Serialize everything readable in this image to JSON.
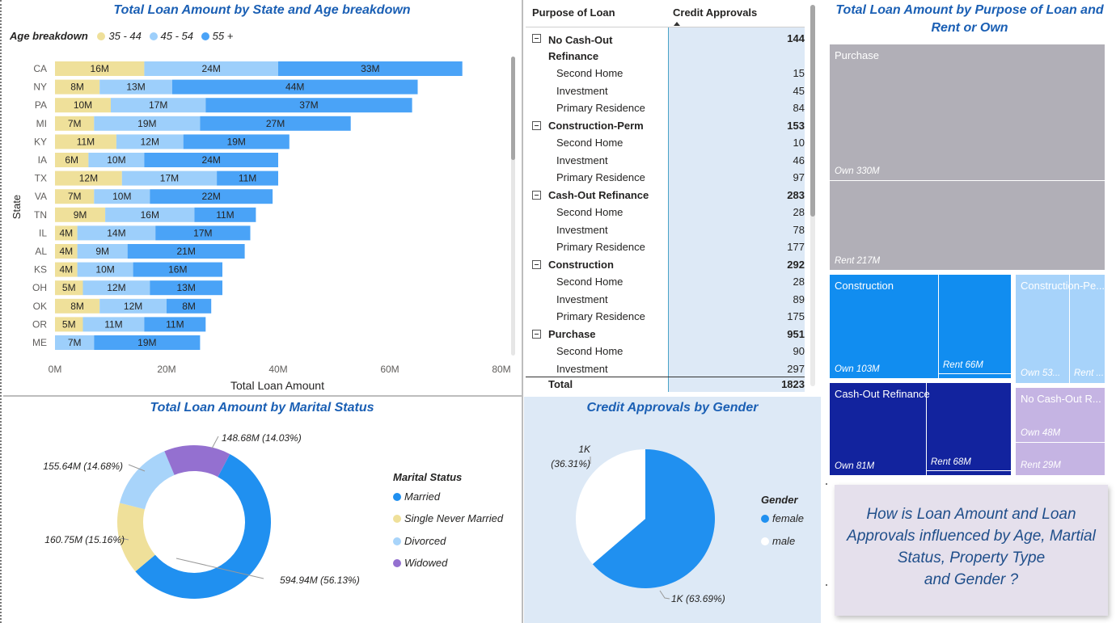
{
  "colors": {
    "age_35_44": "#efe09a",
    "age_45_54": "#9dcffb",
    "age_55_plus": "#4aa3f7",
    "married": "#2090f0",
    "single": "#efe09a",
    "divorced": "#a8d4fa",
    "widowed": "#9470d0",
    "female": "#2090f0",
    "male": "#ffffff"
  },
  "state_chart": {
    "title": "Total Loan Amount by State and Age breakdown",
    "legend_title": "Age breakdown",
    "legend": [
      "35 - 44",
      "45 - 54",
      "55 +"
    ],
    "ylabel": "State",
    "xlabel": "Total Loan Amount",
    "xticks": [
      "0M",
      "20M",
      "40M",
      "60M",
      "80M"
    ]
  },
  "matrix": {
    "col1": "Purpose of Loan",
    "col2": "Credit Approvals",
    "groups": [
      {
        "name": "No Cash-Out Refinance",
        "name_l1": "No Cash-Out",
        "name_l2": "Refinance",
        "total": "144",
        "rows": [
          [
            "Second Home",
            "15"
          ],
          [
            "Investment",
            "45"
          ],
          [
            "Primary Residence",
            "84"
          ]
        ]
      },
      {
        "name": "Construction-Perm",
        "total": "153",
        "rows": [
          [
            "Second Home",
            "10"
          ],
          [
            "Investment",
            "46"
          ],
          [
            "Primary Residence",
            "97"
          ]
        ]
      },
      {
        "name": "Cash-Out Refinance",
        "total": "283",
        "rows": [
          [
            "Second Home",
            "28"
          ],
          [
            "Investment",
            "78"
          ],
          [
            "Primary Residence",
            "177"
          ]
        ]
      },
      {
        "name": "Construction",
        "total": "292",
        "rows": [
          [
            "Second Home",
            "28"
          ],
          [
            "Investment",
            "89"
          ],
          [
            "Primary Residence",
            "175"
          ]
        ]
      },
      {
        "name": "Purchase",
        "total": "951",
        "rows": [
          [
            "Second Home",
            "90"
          ],
          [
            "Investment",
            "297"
          ]
        ]
      }
    ],
    "total_label": "Total",
    "total_value": "1823"
  },
  "treemap": {
    "title_l1": "Total Loan Amount by Purpose of Loan and",
    "title_l2": "Rent or Own",
    "purchase": {
      "label": "Purchase",
      "own": "Own 330M",
      "rent": "Rent 217M"
    },
    "construction": {
      "label": "Construction",
      "own": "Own 103M",
      "rent": "Rent 66M"
    },
    "construction_perm": {
      "label": "Construction-Pe...",
      "own": "Own 53...",
      "rent": "Rent ..."
    },
    "cash_out": {
      "label": "Cash-Out Refinance",
      "own": "Own 81M",
      "rent": "Rent 68M"
    },
    "no_cash_out": {
      "label": "No Cash-Out R...",
      "own": "Own 48M",
      "rent": "Rent 29M"
    }
  },
  "marital": {
    "title": "Total Loan Amount by Marital Status",
    "legend_title": "Marital Status",
    "legend": [
      "Married",
      "Single Never Married",
      "Divorced",
      "Widowed"
    ],
    "labels": [
      "594.94M (56.13%)",
      "160.75M (15.16%)",
      "155.64M (14.68%)",
      "148.68M (14.03%)"
    ]
  },
  "gender": {
    "title": "Credit Approvals by Gender",
    "legend_title": "Gender",
    "legend": [
      "female",
      "male"
    ],
    "label_female": "1K (63.69%)",
    "label_male_l1": "1K",
    "label_male_l2": "(36.31%)"
  },
  "question": {
    "l1": "How is Loan Amount and Loan",
    "l2": "Approvals influenced by Age, Martial",
    "l3": "Status, Property Type",
    "l4": "and Gender ?"
  },
  "chart_data": [
    {
      "type": "bar",
      "title": "Total Loan Amount by State and Age breakdown",
      "xlabel": "Total Loan Amount",
      "ylabel": "State",
      "xlim": [
        0,
        80
      ],
      "categories": [
        "CA",
        "NY",
        "PA",
        "MI",
        "KY",
        "IA",
        "TX",
        "VA",
        "TN",
        "IL",
        "AL",
        "KS",
        "OH",
        "OK",
        "OR",
        "ME"
      ],
      "series": [
        {
          "name": "35 - 44",
          "values": [
            16,
            8,
            10,
            7,
            11,
            6,
            12,
            7,
            9,
            4,
            4,
            4,
            5,
            8,
            5,
            0
          ]
        },
        {
          "name": "45 - 54",
          "values": [
            24,
            13,
            17,
            19,
            12,
            10,
            17,
            10,
            16,
            14,
            9,
            10,
            12,
            12,
            11,
            7
          ]
        },
        {
          "name": "55 +",
          "values": [
            33,
            44,
            37,
            27,
            19,
            24,
            11,
            22,
            11,
            17,
            21,
            16,
            13,
            8,
            11,
            19
          ]
        }
      ],
      "labels": [
        [
          "16M",
          "24M",
          "33M"
        ],
        [
          "8M",
          "13M",
          "44M"
        ],
        [
          "10M",
          "17M",
          "37M"
        ],
        [
          "7M",
          "19M",
          "27M"
        ],
        [
          "11M",
          "12M",
          "19M"
        ],
        [
          "6M",
          "10M",
          "24M"
        ],
        [
          "12M",
          "17M",
          "11M"
        ],
        [
          "7M",
          "10M",
          "22M"
        ],
        [
          "9M",
          "16M",
          "11M"
        ],
        [
          "4M",
          "14M",
          "17M"
        ],
        [
          "4M",
          "9M",
          "21M"
        ],
        [
          "4M",
          "10M",
          "16M"
        ],
        [
          "5M",
          "12M",
          "13M"
        ],
        [
          "8M",
          "12M",
          "8M"
        ],
        [
          "5M",
          "11M",
          "11M"
        ],
        [
          "",
          "7M",
          "19M"
        ]
      ]
    },
    {
      "type": "pie",
      "title": "Total Loan Amount by Marital Status",
      "categories": [
        "Married",
        "Single Never Married",
        "Divorced",
        "Widowed"
      ],
      "values": [
        594.94,
        160.75,
        155.64,
        148.68
      ],
      "percent": [
        56.13,
        15.16,
        14.68,
        14.03
      ]
    },
    {
      "type": "pie",
      "title": "Credit Approvals by Gender",
      "categories": [
        "female",
        "male"
      ],
      "percent": [
        63.69,
        36.31
      ]
    }
  ]
}
